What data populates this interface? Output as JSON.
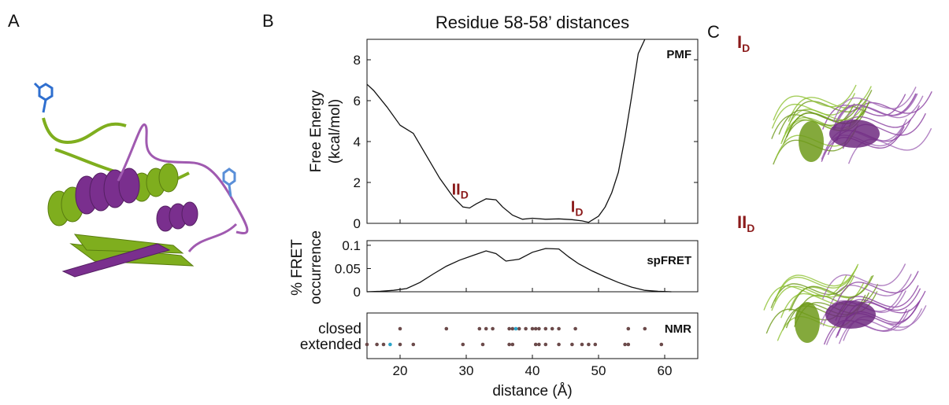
{
  "panels": {
    "a": "A",
    "b": "B",
    "c": "C"
  },
  "title": "Residue 58-58’ distances",
  "states": {
    "i_main": "I",
    "ii_main": "II",
    "sub": "D"
  },
  "xlabel": "distance (Å)",
  "colors": {
    "green": "#7fae1e",
    "purple": "#7a2f8e",
    "blue": "#2f6fcf",
    "dot": "#6b4a4a",
    "dot_hl": "#2aa4c8",
    "state": "#8b1a1a"
  },
  "chart_data": [
    {
      "type": "line",
      "tag": "PMF",
      "ylabel": "Free Energy",
      "ylabel2": "(kcal/mol)",
      "xlim": [
        15,
        65
      ],
      "ylim": [
        0,
        9
      ],
      "xticks": [
        20,
        30,
        40,
        50,
        60
      ],
      "yticks": [
        0,
        2,
        4,
        6,
        8
      ],
      "annotations": [
        {
          "label": "II",
          "sub": "D",
          "x": 29,
          "y": 1.1
        },
        {
          "label": "I",
          "sub": "D",
          "x": 47,
          "y": 0.25
        }
      ],
      "x": [
        15,
        16,
        18,
        20,
        22,
        24,
        26,
        28,
        29.5,
        30.5,
        31.5,
        33,
        34.5,
        35.5,
        37,
        38.5,
        40,
        42,
        44,
        46,
        47.5,
        48.5,
        50,
        51,
        52,
        53,
        54,
        55,
        56,
        57
      ],
      "y": [
        6.8,
        6.5,
        5.7,
        4.8,
        4.4,
        3.3,
        2.2,
        1.3,
        0.8,
        0.75,
        0.95,
        1.2,
        1.15,
        0.8,
        0.4,
        0.2,
        0.25,
        0.2,
        0.22,
        0.18,
        0.12,
        0.05,
        0.35,
        0.8,
        1.5,
        2.5,
        4.2,
        6.2,
        8.3,
        9.0
      ]
    },
    {
      "type": "line",
      "tag": "spFRET",
      "ylabel": "% FRET",
      "ylabel2": "occurrence",
      "xlim": [
        15,
        65
      ],
      "ylim": [
        0,
        0.11
      ],
      "yticks": [
        0,
        0.05,
        0.1
      ],
      "yticklabels": [
        "0",
        "0.05",
        "0.1"
      ],
      "x": [
        15,
        17,
        19,
        21,
        23,
        25,
        27,
        29,
        31,
        33,
        34.5,
        36,
        38,
        40,
        42,
        44,
        45.5,
        47,
        49,
        51,
        53,
        55,
        57,
        59,
        61
      ],
      "y": [
        0,
        0.001,
        0.003,
        0.007,
        0.02,
        0.038,
        0.055,
        0.068,
        0.078,
        0.088,
        0.082,
        0.066,
        0.07,
        0.085,
        0.093,
        0.092,
        0.075,
        0.06,
        0.045,
        0.032,
        0.02,
        0.01,
        0.003,
        0.001,
        0
      ],
      "ylim_note": ""
    },
    {
      "type": "scatter",
      "tag": "NMR",
      "categories": [
        "closed",
        "extended"
      ],
      "closed": [
        20,
        27,
        32,
        33,
        34,
        36.5,
        37,
        38,
        39,
        40,
        40.5,
        41,
        42,
        43,
        44,
        46.5,
        54.5,
        57
      ],
      "closed_highlight": [
        37.5
      ],
      "extended": [
        15,
        16.5,
        17.5,
        20,
        22,
        29.5,
        32.5,
        36.5,
        37,
        40.5,
        41,
        42,
        44,
        46,
        47.5,
        48.5,
        49.5,
        54,
        54.5,
        59.5
      ],
      "extended_highlight": [
        18.5
      ]
    }
  ]
}
